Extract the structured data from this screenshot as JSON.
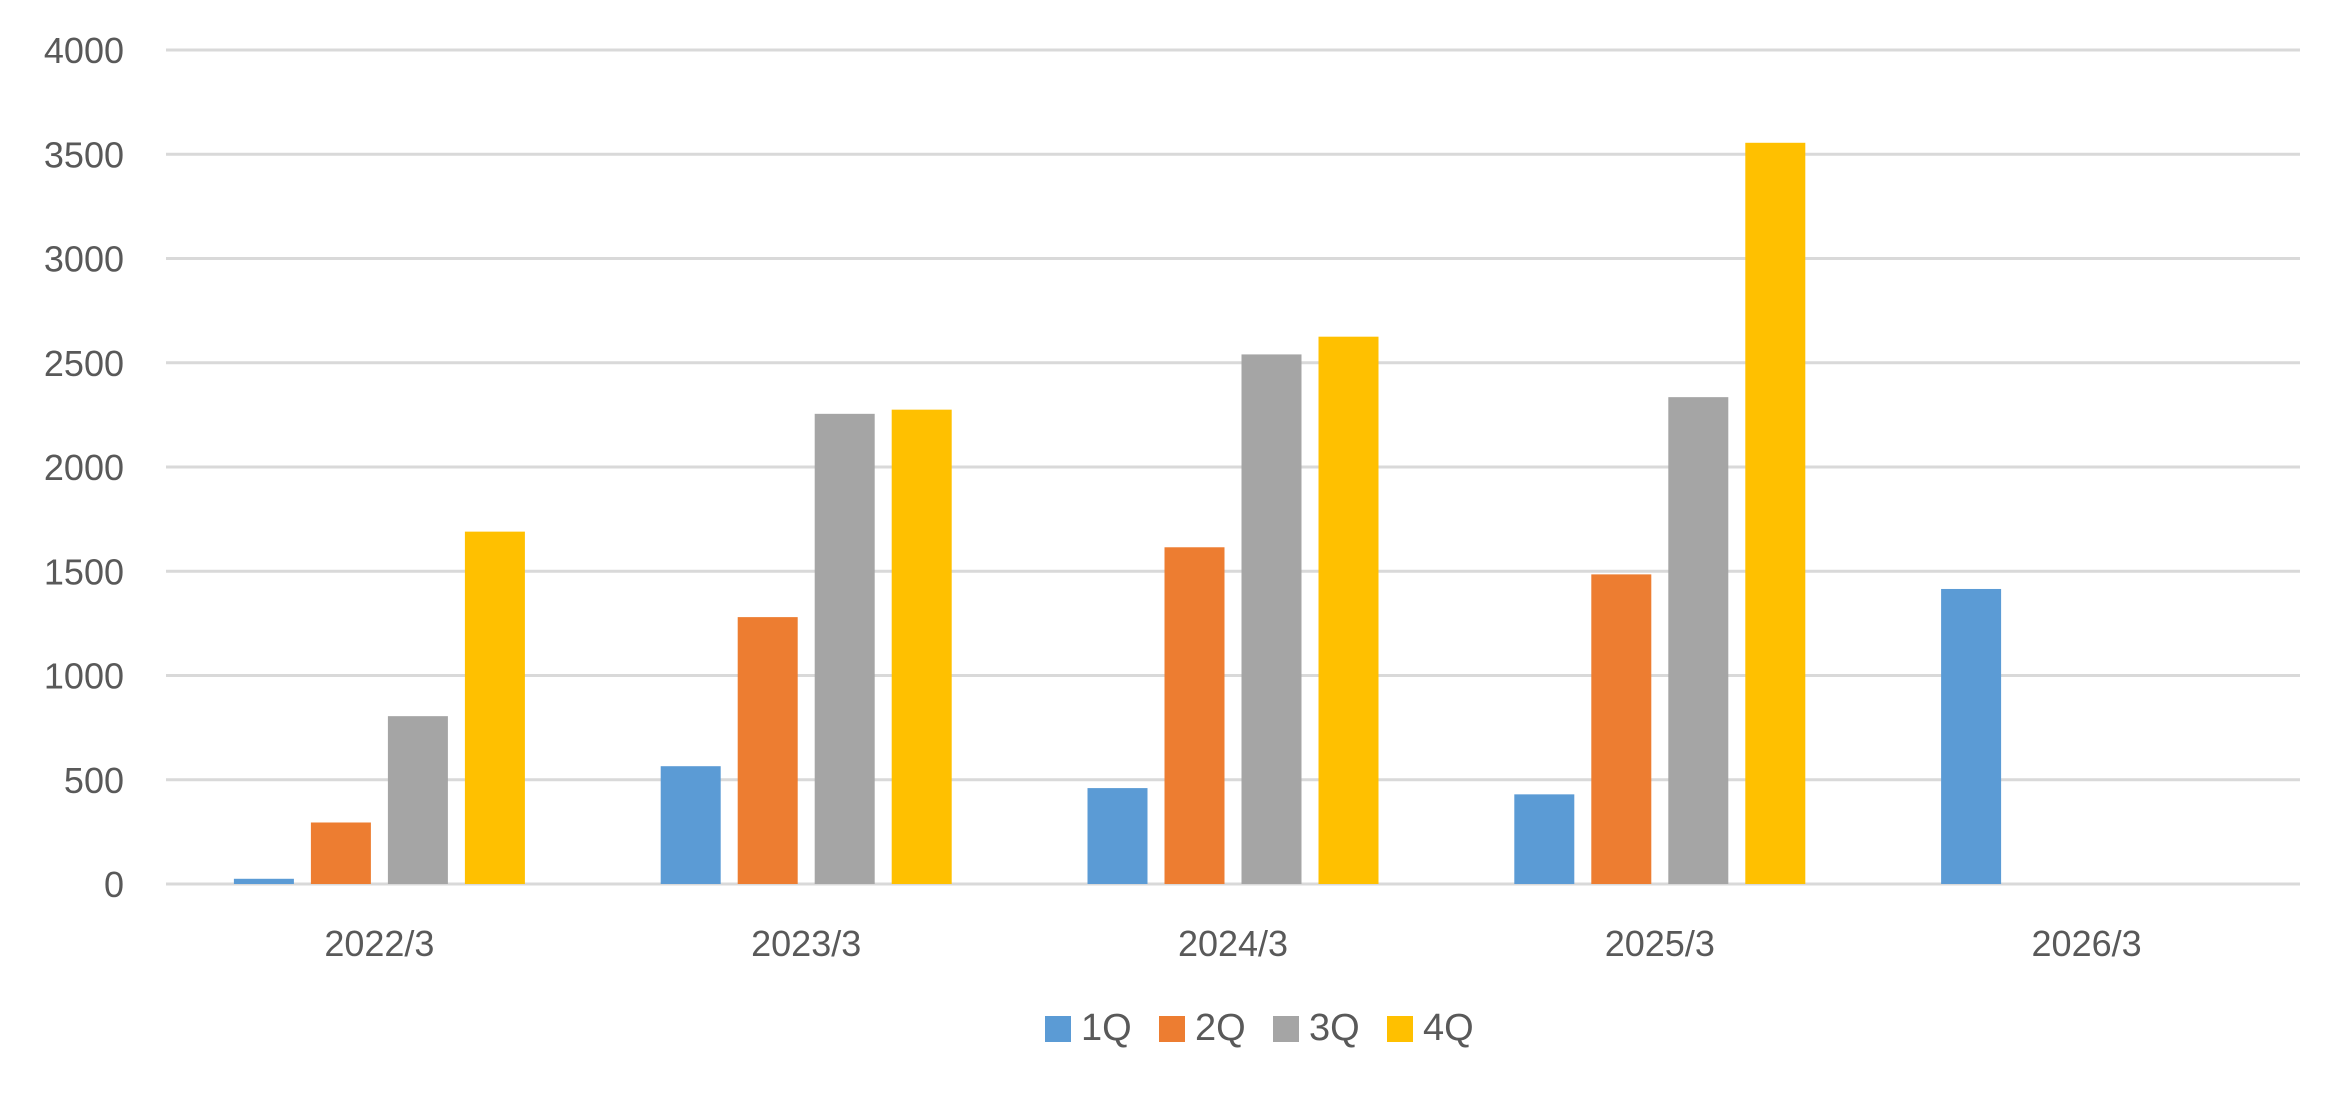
{
  "chart_data": {
    "type": "bar",
    "categories": [
      "2022/3",
      "2023/3",
      "2024/3",
      "2025/3",
      "2026/3"
    ],
    "series": [
      {
        "name": "1Q",
        "color": "#5B9BD5",
        "values": [
          25,
          565,
          460,
          430,
          1415
        ]
      },
      {
        "name": "2Q",
        "color": "#ED7D31",
        "values": [
          295,
          1280,
          1615,
          1485,
          null
        ]
      },
      {
        "name": "3Q",
        "color": "#A5A5A5",
        "values": [
          805,
          2255,
          2540,
          2335,
          null
        ]
      },
      {
        "name": "4Q",
        "color": "#FFC000",
        "values": [
          1690,
          2275,
          2625,
          3555,
          null
        ]
      }
    ],
    "ylim": [
      0,
      4000
    ],
    "yticks": [
      0,
      500,
      1000,
      1500,
      2000,
      2500,
      3000,
      3500,
      4000
    ],
    "grid": true,
    "legend": "bottom-center",
    "colors": {
      "gridline": "#D9D9D9",
      "text": "#595959"
    }
  }
}
